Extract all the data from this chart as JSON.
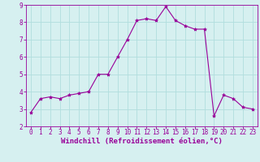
{
  "x": [
    0,
    1,
    2,
    3,
    4,
    5,
    6,
    7,
    8,
    9,
    10,
    11,
    12,
    13,
    14,
    15,
    16,
    17,
    18,
    19,
    20,
    21,
    22,
    23
  ],
  "y": [
    2.8,
    3.6,
    3.7,
    3.6,
    3.8,
    3.9,
    4.0,
    5.0,
    5.0,
    6.0,
    7.0,
    8.1,
    8.2,
    8.1,
    8.9,
    8.1,
    7.8,
    7.6,
    7.6,
    2.6,
    3.8,
    3.6,
    3.1,
    3.0
  ],
  "line_color": "#990099",
  "marker": "*",
  "marker_size": 3,
  "bg_color": "#d6f0f0",
  "grid_color": "#b0dede",
  "xlabel": "Windchill (Refroidissement éolien,°C)",
  "xlabel_color": "#990099",
  "tick_color": "#990099",
  "ylim": [
    2,
    9
  ],
  "xlim": [
    -0.5,
    23.5
  ],
  "yticks": [
    2,
    3,
    4,
    5,
    6,
    7,
    8,
    9
  ],
  "xticks": [
    0,
    1,
    2,
    3,
    4,
    5,
    6,
    7,
    8,
    9,
    10,
    11,
    12,
    13,
    14,
    15,
    16,
    17,
    18,
    19,
    20,
    21,
    22,
    23
  ],
  "figsize": [
    3.2,
    2.0
  ],
  "dpi": 100,
  "tick_fontsize": 5.5,
  "xlabel_fontsize": 6.5
}
